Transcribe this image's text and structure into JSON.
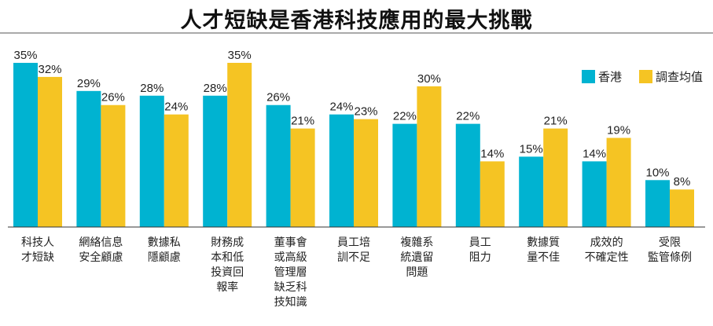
{
  "chart_data": {
    "type": "bar",
    "title": "人才短缺是香港科技應用的最大挑戰",
    "xlabel": "",
    "ylabel": "",
    "ylim": [
      0,
      35
    ],
    "legend_position": "top-right",
    "grid": false,
    "categories": [
      [
        "科技人",
        "才短缺"
      ],
      [
        "網絡信息",
        "安全顧慮"
      ],
      [
        "數據私",
        "隱顧慮"
      ],
      [
        "財務成",
        "本和低",
        "投資回",
        "報率"
      ],
      [
        "董事會",
        "或高級",
        "管理層",
        "缺乏科",
        "技知識"
      ],
      [
        "員工培",
        "訓不足"
      ],
      [
        "複雜系",
        "統遺留",
        "問題"
      ],
      [
        "員工",
        "阻力"
      ],
      [
        "數據質",
        "量不佳"
      ],
      [
        "成效的",
        "不確定性"
      ],
      [
        "受限",
        "監管條例"
      ]
    ],
    "series": [
      {
        "name": "香港",
        "color": "#00b3d1",
        "values": [
          35,
          29,
          28,
          28,
          26,
          24,
          22,
          22,
          15,
          14,
          10
        ],
        "labels": [
          "35%",
          "29%",
          "28%",
          "28%",
          "26%",
          "24%",
          "22%",
          "22%",
          "15%",
          "14%",
          "10%"
        ]
      },
      {
        "name": "調查均值",
        "color": "#f5c423",
        "values": [
          32,
          26,
          24,
          35,
          21,
          23,
          30,
          14,
          21,
          19,
          8
        ],
        "labels": [
          "32%",
          "26%",
          "24%",
          "35%",
          "21%",
          "23%",
          "30%",
          "14%",
          "21%",
          "19%",
          "8%"
        ]
      }
    ]
  }
}
